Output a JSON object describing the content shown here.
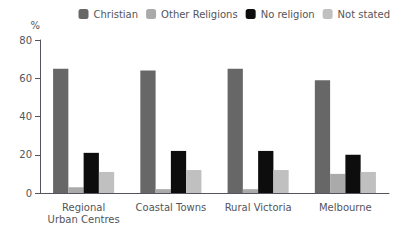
{
  "chart_data": {
    "type": "bar",
    "ylabel": "%",
    "categories": [
      "Regional\nUrban Centres",
      "Coastal Towns",
      "Rural Victoria",
      "Melbourne"
    ],
    "series": [
      {
        "name": "Christian",
        "color": "#676767",
        "values": [
          65,
          64,
          65,
          59
        ]
      },
      {
        "name": "Other Religions",
        "color": "#aaaaaa",
        "values": [
          3,
          2,
          2,
          10
        ]
      },
      {
        "name": "No religion",
        "color": "#0d0d0d",
        "values": [
          21,
          22,
          22,
          20
        ]
      },
      {
        "name": "Not stated",
        "color": "#c0c0c0",
        "values": [
          11,
          12,
          12,
          11
        ]
      }
    ],
    "ylim": [
      0,
      80
    ],
    "yticks": [
      0,
      20,
      40,
      60,
      80
    ],
    "grid": false,
    "legend": "upper right"
  }
}
